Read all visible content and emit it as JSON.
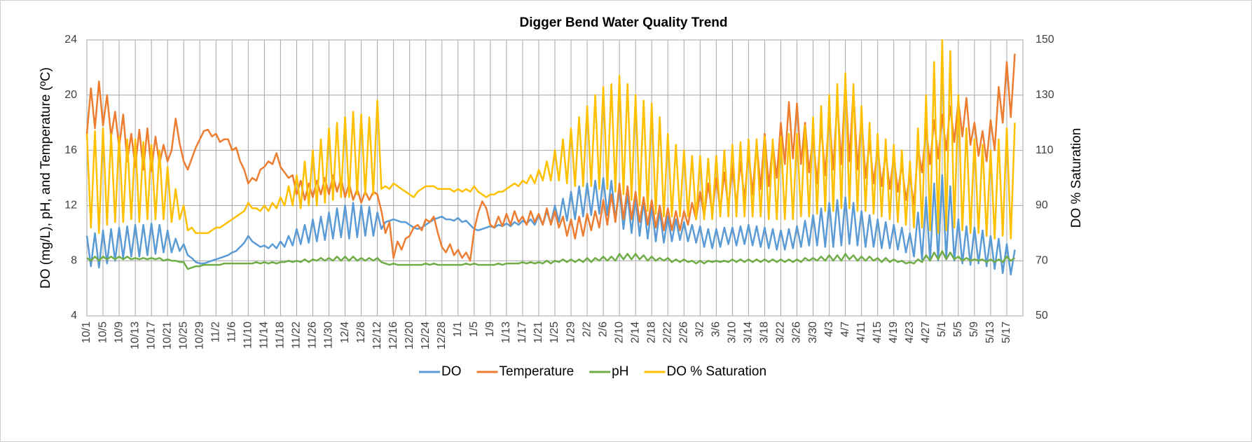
{
  "chart_data": {
    "type": "line",
    "title": "Digger Bend Water Quality Trend",
    "ylabel": "DO (mg/L), pH, and Temperature (ºC)",
    "y2label": "DO % Saturation",
    "categories": [
      "10/1",
      null,
      null,
      null,
      "10/5",
      null,
      null,
      null,
      "10/9",
      null,
      null,
      null,
      "10/13",
      null,
      null,
      null,
      "10/17",
      null,
      null,
      null,
      "10/21",
      null,
      null,
      null,
      "10/25",
      null,
      null,
      null,
      "10/29",
      null,
      null,
      null,
      "11/2",
      null,
      null,
      null,
      "11/6",
      null,
      null,
      null,
      "11/10",
      null,
      null,
      null,
      "11/14",
      null,
      null,
      null,
      "11/18",
      null,
      null,
      null,
      "11/22",
      null,
      null,
      null,
      "11/26",
      null,
      null,
      null,
      "11/30",
      null,
      null,
      null,
      "12/4",
      null,
      null,
      null,
      "12/8",
      null,
      null,
      null,
      "12/12",
      null,
      null,
      null,
      "12/16",
      null,
      null,
      null,
      "12/20",
      null,
      null,
      null,
      "12/24",
      null,
      null,
      null,
      "12/28",
      null,
      null,
      null,
      "1/1",
      null,
      null,
      null,
      "1/5",
      null,
      null,
      null,
      "1/9",
      null,
      null,
      null,
      "1/13",
      null,
      null,
      null,
      "1/17",
      null,
      null,
      null,
      "1/21",
      null,
      null,
      null,
      "1/25",
      null,
      null,
      null,
      "1/29",
      null,
      null,
      null,
      "2/2",
      null,
      null,
      null,
      "2/6",
      null,
      null,
      null,
      "2/10",
      null,
      null,
      null,
      "2/14",
      null,
      null,
      null,
      "2/18",
      null,
      null,
      null,
      "2/22",
      null,
      null,
      null,
      "2/26",
      null,
      null,
      null,
      "3/2",
      null,
      null,
      null,
      "3/6",
      null,
      null,
      null,
      "3/10",
      null,
      null,
      null,
      "3/14",
      null,
      null,
      null,
      "3/18",
      null,
      null,
      null,
      "3/22",
      null,
      null,
      null,
      "3/26",
      null,
      null,
      null,
      "3/30",
      null,
      null,
      null,
      "4/3",
      null,
      null,
      null,
      "4/7",
      null,
      null,
      null,
      "4/11",
      null,
      null,
      null,
      "4/15",
      null,
      null,
      null,
      "4/19",
      null,
      null,
      null,
      "4/23",
      null,
      null,
      null,
      "4/27",
      null,
      null,
      null,
      "5/1",
      null,
      null,
      null,
      "5/5",
      null,
      null,
      null,
      "5/9",
      null,
      null,
      null,
      "5/13",
      null,
      null,
      null,
      "5/17",
      null,
      null
    ],
    "series": [
      {
        "name": "DO",
        "color": "#5b9bd5",
        "values": [
          9.8,
          7.6,
          10.0,
          7.5,
          10.2,
          7.8,
          10.3,
          8.0,
          10.4,
          8.2,
          10.5,
          8.3,
          10.6,
          8.3,
          10.6,
          8.4,
          10.7,
          8.5,
          10.6,
          8.6,
          10.2,
          8.6,
          9.6,
          8.7,
          9.2,
          8.4,
          8.2,
          7.9,
          7.8,
          7.8,
          7.9,
          8.0,
          8.1,
          8.2,
          8.3,
          8.4,
          8.6,
          8.7,
          9.0,
          9.3,
          9.8,
          9.4,
          9.2,
          9.0,
          9.1,
          8.9,
          9.2,
          8.9,
          9.4,
          9.0,
          9.8,
          9.1,
          10.3,
          9.2,
          10.6,
          9.3,
          11.0,
          9.4,
          11.2,
          9.5,
          11.5,
          9.6,
          11.8,
          9.7,
          12.0,
          9.6,
          12.2,
          9.7,
          12.0,
          9.8,
          11.9,
          9.8,
          11.5,
          10.3,
          10.8,
          10.9,
          11.0,
          10.9,
          10.8,
          10.8,
          10.6,
          10.4,
          10.3,
          10.4,
          10.6,
          10.8,
          11.0,
          11.1,
          11.2,
          11.0,
          11.0,
          10.9,
          11.1,
          10.8,
          10.9,
          10.6,
          10.3,
          10.2,
          10.3,
          10.4,
          10.5,
          10.4,
          10.6,
          10.5,
          10.7,
          10.5,
          10.8,
          10.6,
          10.9,
          10.7,
          11.0,
          10.6,
          11.3,
          10.6,
          11.6,
          10.7,
          12.0,
          10.8,
          12.5,
          10.9,
          13.0,
          11.0,
          13.4,
          11.2,
          13.6,
          11.3,
          13.8,
          11.4,
          14.0,
          11.3,
          13.8,
          11.0,
          13.2,
          10.3,
          12.8,
          10.0,
          12.6,
          9.8,
          12.3,
          9.6,
          12.0,
          9.4,
          11.6,
          9.3,
          11.2,
          9.4,
          11.0,
          9.5,
          10.8,
          9.4,
          10.6,
          9.3,
          10.5,
          9.0,
          10.3,
          8.9,
          10.3,
          9.0,
          10.4,
          9.2,
          10.4,
          9.1,
          10.5,
          9.2,
          10.6,
          9.1,
          10.5,
          9.0,
          10.4,
          8.9,
          10.3,
          8.8,
          10.2,
          8.8,
          10.3,
          8.9,
          10.5,
          9.0,
          10.9,
          9.1,
          11.3,
          9.1,
          11.8,
          9.0,
          12.2,
          9.0,
          12.4,
          9.1,
          12.6,
          9.2,
          12.2,
          9.1,
          11.6,
          9.0,
          11.3,
          9.0,
          11.0,
          8.9,
          10.8,
          8.9,
          10.6,
          8.8,
          10.4,
          8.6,
          10.0,
          8.3,
          11.5,
          8.1,
          12.6,
          8.0,
          13.6,
          8.0,
          14.2,
          8.1,
          13.4,
          8.0,
          11.0,
          7.8,
          10.5,
          7.7,
          10.4,
          7.8,
          10.2,
          7.6,
          9.8,
          7.4,
          9.6,
          7.1,
          9.2,
          7.0,
          8.8
        ]
      },
      {
        "name": "Temperature",
        "color": "#ed7d31",
        "values": [
          17.2,
          20.5,
          17.6,
          21.0,
          17.8,
          20.0,
          17.0,
          18.8,
          16.2,
          18.6,
          15.2,
          17.2,
          14.8,
          17.5,
          14.6,
          17.6,
          14.5,
          17.0,
          15.0,
          16.4,
          15.2,
          16.0,
          18.3,
          16.5,
          15.2,
          14.6,
          15.4,
          16.2,
          16.8,
          17.4,
          17.5,
          17.0,
          17.2,
          16.6,
          16.8,
          16.8,
          16.0,
          16.2,
          15.2,
          14.6,
          13.6,
          14.0,
          13.8,
          14.6,
          14.8,
          15.2,
          15.0,
          15.8,
          14.8,
          14.4,
          14.0,
          14.2,
          12.8,
          13.8,
          12.4,
          13.6,
          12.6,
          13.8,
          12.8,
          14.0,
          12.8,
          14.2,
          13.0,
          14.0,
          12.6,
          13.6,
          12.4,
          13.2,
          12.2,
          13.0,
          12.4,
          13.0,
          12.8,
          11.6,
          10.0,
          10.8,
          8.2,
          9.4,
          8.8,
          9.6,
          9.8,
          10.4,
          10.6,
          10.2,
          11.0,
          10.8,
          11.2,
          10.0,
          9.0,
          8.6,
          9.2,
          8.4,
          8.8,
          8.2,
          8.6,
          8.0,
          10.2,
          11.5,
          12.3,
          11.8,
          10.6,
          10.4,
          11.2,
          10.5,
          11.4,
          10.6,
          11.6,
          10.8,
          11.2,
          10.6,
          11.6,
          10.8,
          11.4,
          10.6,
          11.8,
          10.6,
          11.6,
          10.4,
          11.2,
          9.8,
          11.0,
          9.6,
          11.2,
          9.8,
          11.4,
          10.2,
          11.6,
          10.4,
          12.4,
          10.6,
          12.8,
          10.8,
          13.6,
          11.0,
          13.4,
          11.0,
          13.0,
          10.8,
          12.6,
          10.6,
          12.4,
          10.4,
          12.0,
          10.2,
          11.8,
          10.2,
          11.6,
          10.2,
          11.6,
          10.6,
          12.2,
          11.0,
          13.0,
          11.2,
          13.6,
          11.4,
          14.0,
          11.6,
          14.4,
          11.8,
          14.8,
          12.0,
          15.2,
          12.4,
          16.0,
          12.8,
          16.6,
          13.2,
          17.2,
          13.4,
          16.4,
          14.0,
          18.0,
          15.0,
          19.5,
          15.4,
          19.4,
          15.0,
          18.0,
          14.4,
          17.0,
          13.6,
          17.8,
          14.2,
          18.6,
          14.6,
          19.6,
          15.0,
          21.0,
          15.2,
          20.4,
          14.6,
          18.4,
          14.0,
          16.6,
          13.6,
          16.2,
          13.4,
          15.8,
          13.2,
          15.6,
          13.0,
          15.0,
          12.4,
          14.2,
          12.0,
          16.2,
          14.4,
          17.6,
          15.0,
          18.2,
          15.4,
          18.6,
          16.0,
          19.2,
          16.6,
          19.6,
          17.0,
          19.8,
          16.4,
          18.0,
          15.6,
          17.4,
          15.2,
          18.2,
          16.0,
          20.6,
          18.0,
          22.4,
          18.4,
          23.0
        ]
      },
      {
        "name": "pH",
        "color": "#70ad47",
        "values": [
          8.2,
          8.0,
          8.3,
          8.0,
          8.3,
          8.1,
          8.3,
          8.1,
          8.3,
          8.1,
          8.3,
          8.1,
          8.2,
          8.1,
          8.2,
          8.1,
          8.2,
          8.1,
          8.2,
          8.0,
          8.1,
          8.0,
          8.0,
          7.9,
          7.9,
          7.4,
          7.5,
          7.6,
          7.6,
          7.7,
          7.7,
          7.7,
          7.7,
          7.7,
          7.8,
          7.8,
          7.8,
          7.8,
          7.8,
          7.8,
          7.8,
          7.8,
          7.9,
          7.8,
          7.9,
          7.8,
          7.9,
          7.8,
          7.9,
          7.9,
          8.0,
          7.9,
          8.0,
          7.9,
          8.1,
          7.9,
          8.1,
          8.0,
          8.2,
          8.0,
          8.2,
          8.0,
          8.3,
          8.0,
          8.3,
          8.0,
          8.3,
          8.0,
          8.2,
          8.0,
          8.2,
          8.0,
          8.2,
          7.9,
          7.8,
          7.7,
          7.8,
          7.7,
          7.7,
          7.7,
          7.7,
          7.7,
          7.7,
          7.7,
          7.8,
          7.7,
          7.8,
          7.7,
          7.7,
          7.7,
          7.7,
          7.7,
          7.7,
          7.7,
          7.8,
          7.7,
          7.8,
          7.7,
          7.7,
          7.7,
          7.7,
          7.7,
          7.8,
          7.7,
          7.8,
          7.8,
          7.8,
          7.8,
          7.9,
          7.8,
          7.9,
          7.8,
          7.9,
          7.8,
          8.0,
          7.8,
          8.0,
          7.9,
          8.1,
          7.9,
          8.1,
          7.9,
          8.1,
          7.9,
          8.2,
          7.9,
          8.2,
          8.0,
          8.3,
          8.0,
          8.3,
          8.0,
          8.5,
          8.1,
          8.5,
          8.1,
          8.5,
          8.1,
          8.4,
          8.0,
          8.3,
          8.0,
          8.2,
          8.0,
          8.2,
          7.9,
          8.1,
          7.9,
          8.1,
          7.9,
          8.0,
          7.8,
          8.0,
          7.8,
          8.0,
          7.9,
          8.0,
          7.9,
          8.0,
          7.9,
          8.1,
          7.9,
          8.1,
          7.9,
          8.1,
          7.9,
          8.1,
          7.9,
          8.1,
          7.9,
          8.1,
          7.9,
          8.1,
          7.9,
          8.1,
          7.9,
          8.1,
          7.9,
          8.2,
          8.0,
          8.2,
          8.0,
          8.3,
          8.0,
          8.4,
          8.0,
          8.4,
          8.0,
          8.5,
          8.1,
          8.4,
          8.0,
          8.3,
          8.0,
          8.3,
          8.0,
          8.2,
          7.9,
          8.2,
          7.9,
          8.1,
          7.9,
          8.0,
          7.8,
          7.9,
          7.8,
          8.1,
          7.9,
          8.4,
          8.0,
          8.6,
          8.1,
          8.7,
          8.1,
          8.6,
          8.1,
          8.3,
          8.0,
          8.2,
          8.0,
          8.1,
          8.0,
          8.1,
          7.9,
          8.1,
          7.9,
          8.1,
          7.9,
          8.3,
          8.0,
          8.2
        ]
      },
      {
        "name": "DO % Saturation",
        "color": "#ffc000",
        "axis": "y2",
        "values": [
          116,
          82,
          117,
          80,
          118,
          83,
          116,
          84,
          115,
          84,
          114,
          85,
          114,
          84,
          113,
          85,
          112,
          85,
          110,
          85,
          104,
          84,
          96,
          85,
          90,
          81,
          82,
          80,
          80,
          80,
          80,
          81,
          82,
          82,
          83,
          84,
          85,
          86,
          87,
          88,
          91,
          89,
          89,
          88,
          90,
          88,
          91,
          89,
          93,
          90,
          97,
          90,
          101,
          89,
          106,
          90,
          110,
          90,
          114,
          91,
          118,
          92,
          120,
          93,
          122,
          93,
          124,
          94,
          123,
          94,
          122,
          94,
          128,
          96,
          97,
          96,
          98,
          97,
          96,
          95,
          94,
          93,
          95,
          96,
          97,
          97,
          97,
          96,
          96,
          96,
          96,
          95,
          96,
          95,
          96,
          95,
          97,
          95,
          94,
          93,
          94,
          94,
          95,
          95,
          96,
          97,
          98,
          97,
          99,
          98,
          101,
          98,
          103,
          99,
          106,
          99,
          110,
          99,
          114,
          98,
          118,
          97,
          122,
          97,
          126,
          97,
          130,
          96,
          133,
          96,
          134,
          95,
          137,
          94,
          134,
          92,
          130,
          90,
          128,
          88,
          127,
          87,
          122,
          86,
          116,
          86,
          112,
          86,
          110,
          86,
          108,
          85,
          108,
          85,
          107,
          85,
          108,
          86,
          110,
          86,
          112,
          86,
          113,
          86,
          114,
          86,
          114,
          86,
          115,
          85,
          114,
          85,
          115,
          85,
          116,
          85,
          116,
          86,
          119,
          86,
          122,
          87,
          126,
          88,
          130,
          88,
          134,
          89,
          138,
          89,
          134,
          88,
          126,
          88,
          120,
          87,
          116,
          86,
          114,
          85,
          112,
          84,
          110,
          83,
          106,
          82,
          118,
          82,
          130,
          81,
          142,
          80,
          150,
          81,
          146,
          82,
          130,
          81,
          118,
          80,
          114,
          80,
          112,
          79,
          110,
          78,
          114,
          79,
          118,
          78,
          120
        ]
      }
    ],
    "ylim": [
      4,
      24
    ],
    "yticks": [
      4,
      8,
      12,
      16,
      20,
      24
    ],
    "y2lim": [
      50,
      150
    ],
    "y2ticks": [
      50,
      70,
      90,
      110,
      130,
      150
    ],
    "grid": true,
    "legend": "bottom"
  }
}
